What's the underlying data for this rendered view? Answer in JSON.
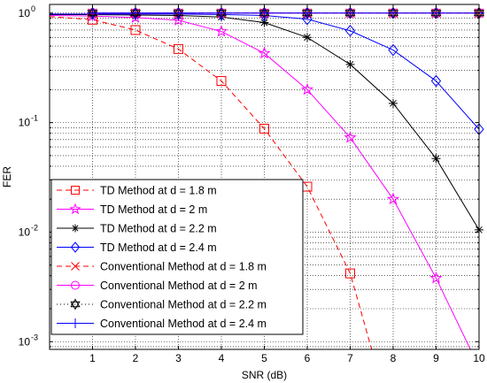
{
  "chart_data": {
    "type": "line",
    "title": "",
    "xlabel": "SNR (dB)",
    "ylabel": "FER",
    "xlim": [
      0,
      10
    ],
    "ylim": [
      0.00085,
      1.2
    ],
    "yscale": "log",
    "grid": "dotted",
    "legend_position": "bottom-left",
    "x_ticks": [
      1,
      2,
      3,
      4,
      5,
      6,
      7,
      8,
      9,
      10
    ],
    "x_tick_labels": [
      "1",
      "2",
      "3",
      "4",
      "5",
      "6",
      "7",
      "8",
      "9",
      "10"
    ],
    "y_tick_labels": [
      {
        "base": "10",
        "exp": "0",
        "value": 1
      },
      {
        "base": "10",
        "exp": "-1",
        "value": 0.1
      },
      {
        "base": "10",
        "exp": "-2",
        "value": 0.01
      },
      {
        "base": "10",
        "exp": "-3",
        "value": 0.001
      }
    ],
    "series": [
      {
        "name": "TD Method at d = 1.8 m",
        "color": "#ff0000",
        "dash": "6,4",
        "marker": "square",
        "x": [
          0,
          1,
          2,
          3,
          4,
          5,
          6,
          7,
          7.5
        ],
        "y": [
          0.93,
          0.87,
          0.7,
          0.47,
          0.24,
          0.088,
          0.026,
          0.0042,
          0.00085
        ],
        "marker_x": [
          1,
          2,
          3,
          4,
          5,
          6,
          7
        ]
      },
      {
        "name": "TD Method at d = 2 m",
        "color": "#ff00ff",
        "dash": "",
        "marker": "star",
        "x": [
          0,
          1,
          2,
          3,
          4,
          5,
          6,
          7,
          8,
          9,
          9.8
        ],
        "y": [
          0.95,
          0.94,
          0.91,
          0.86,
          0.68,
          0.43,
          0.2,
          0.073,
          0.02,
          0.0038,
          0.00085
        ],
        "marker_x": [
          1,
          2,
          3,
          4,
          5,
          6,
          7,
          8,
          9
        ]
      },
      {
        "name": "TD Method at d = 2.2 m",
        "color": "#000000",
        "dash": "",
        "marker": "asterisk",
        "x": [
          0,
          1,
          2,
          3,
          4,
          5,
          6,
          7,
          8,
          9,
          10
        ],
        "y": [
          0.97,
          0.97,
          0.96,
          0.95,
          0.92,
          0.82,
          0.6,
          0.34,
          0.15,
          0.047,
          0.0105
        ],
        "marker_x": [
          1,
          2,
          3,
          4,
          5,
          6,
          7,
          8,
          9,
          10
        ]
      },
      {
        "name": "TD Method at d = 2.4 m",
        "color": "#0000ff",
        "dash": "",
        "marker": "diamond",
        "x": [
          0,
          1,
          2,
          3,
          4,
          5,
          6,
          7,
          8,
          9,
          10
        ],
        "y": [
          0.98,
          0.98,
          0.98,
          0.98,
          0.97,
          0.95,
          0.88,
          0.69,
          0.46,
          0.24,
          0.087
        ],
        "marker_x": [
          1,
          2,
          3,
          4,
          5,
          6,
          7,
          8,
          9,
          10
        ]
      },
      {
        "name": "Conventional Method at d = 1.8 m",
        "color": "#ff0000",
        "dash": "6,4",
        "marker": "x",
        "x": [
          1,
          2,
          3,
          4,
          5,
          6,
          7,
          8,
          9,
          10
        ],
        "y": [
          1,
          1,
          1,
          1,
          1,
          1,
          1,
          1,
          1,
          1
        ],
        "marker_x": [
          1,
          2,
          3,
          4,
          5,
          6,
          7,
          8,
          9,
          10
        ]
      },
      {
        "name": "Conventional Method at d = 2 m",
        "color": "#ff00ff",
        "dash": "",
        "marker": "circle",
        "x": [
          1,
          2,
          3,
          4,
          5,
          6,
          7,
          8,
          9,
          10
        ],
        "y": [
          1,
          1,
          1,
          1,
          1,
          1,
          1,
          1,
          1,
          1
        ],
        "marker_x": [
          1,
          2,
          3,
          4,
          5,
          6,
          7,
          8,
          9,
          10
        ]
      },
      {
        "name": "Conventional Method at d = 2.2 m",
        "color": "#000000",
        "dash": "1,3",
        "marker": "hexagram",
        "x": [
          1,
          2,
          3,
          4,
          5,
          6,
          7,
          8,
          9,
          10
        ],
        "y": [
          1,
          1,
          1,
          1,
          1,
          1,
          1,
          1,
          1,
          1
        ],
        "marker_x": [
          1,
          2,
          3,
          4,
          5,
          6,
          7,
          8,
          9,
          10
        ]
      },
      {
        "name": "Conventional Method at d = 2.4 m",
        "color": "#0000ff",
        "dash": "",
        "marker": "plus",
        "x": [
          1,
          2,
          3,
          4,
          5,
          6,
          7,
          8,
          9,
          10
        ],
        "y": [
          1,
          1,
          1,
          1,
          1,
          1,
          1,
          1,
          1,
          1
        ],
        "marker_x": [
          1,
          2,
          3,
          4,
          5,
          6,
          7,
          8,
          9,
          10
        ]
      }
    ]
  }
}
